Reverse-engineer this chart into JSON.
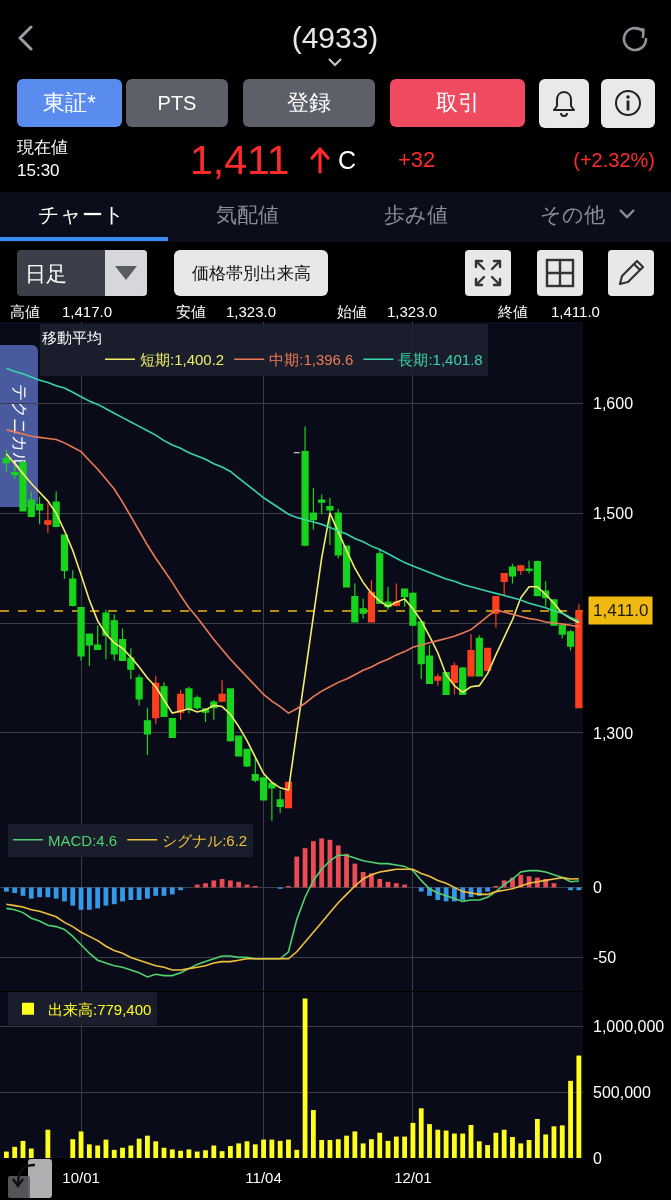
{
  "chart_data": [
    {
      "type": "other",
      "title": "(4933)",
      "annotations": [
        "東証*",
        "PTS",
        "登録",
        "取引",
        "現在値",
        "15:30",
        "1,411",
        "C",
        "+32",
        "(+2.32%)",
        "チャート",
        "気配値",
        "歩み値",
        "その他",
        "日足",
        "価格帯別出来高",
        "高値",
        "1,417.0",
        "安値",
        "1,323.0",
        "始値",
        "1,323.0",
        "終値",
        "1,411.0",
        "テクニカル"
      ]
    },
    {
      "type": "candlestick",
      "categories": [
        null,
        null,
        null,
        null,
        null,
        null,
        null,
        null,
        null,
        null,
        null,
        null,
        null,
        null,
        null,
        null,
        null,
        null,
        null,
        null,
        null,
        null,
        null,
        null,
        null,
        null,
        null,
        null,
        null,
        null,
        null,
        null,
        null,
        null,
        null,
        null,
        null,
        null,
        null,
        null,
        null,
        null,
        null,
        null,
        null,
        null,
        null,
        null,
        null,
        null,
        null,
        null,
        null,
        null,
        null,
        null,
        null,
        null,
        null,
        null,
        null,
        null,
        null,
        null,
        null,
        null,
        null,
        null,
        null,
        null
      ],
      "ohlc": [
        [
          1550,
          1558,
          1538,
          1546
        ],
        [
          1537,
          1543,
          1531,
          1535
        ],
        [
          1546,
          1548,
          1502,
          1502
        ],
        [
          1512,
          1520,
          1497,
          1497
        ],
        [
          1508,
          1515,
          1490,
          1503
        ],
        [
          1490,
          1509,
          1482,
          1493
        ],
        [
          1510,
          1520,
          1488,
          1488
        ],
        [
          1480,
          1480,
          1440,
          1448
        ],
        [
          1440,
          1448,
          1415,
          1416
        ],
        [
          1414,
          1414,
          1366,
          1370
        ],
        [
          1390,
          1390,
          1361,
          1380
        ],
        [
          1380,
          1398,
          1376,
          1376
        ],
        [
          1409,
          1412,
          1367,
          1389
        ],
        [
          1402,
          1408,
          1366,
          1372
        ],
        [
          1385,
          1395,
          1366,
          1366
        ],
        [
          1368,
          1377,
          1349,
          1358
        ],
        [
          1350,
          1353,
          1325,
          1331
        ],
        [
          1311,
          1323,
          1280,
          1299
        ],
        [
          1314,
          1352,
          1308,
          1345
        ],
        [
          1342,
          1346,
          1315,
          1315
        ],
        [
          1313,
          1313,
          1296,
          1296
        ],
        [
          1319,
          1339,
          1312,
          1335
        ],
        [
          1340,
          1342,
          1318,
          1322
        ],
        [
          1332,
          1334,
          1321,
          1323
        ],
        [
          1322,
          1322,
          1310,
          1319
        ],
        [
          1328,
          1330,
          1312,
          1323
        ],
        [
          1329,
          1348,
          1328,
          1335
        ],
        [
          1340,
          1340,
          1292,
          1293
        ],
        [
          1297,
          1297,
          1279,
          1279
        ],
        [
          1285,
          1285,
          1269,
          1270
        ],
        [
          1262,
          1277,
          1255,
          1257
        ],
        [
          1259,
          1259,
          1239,
          1239
        ],
        [
          1254,
          1255,
          1220,
          1250
        ],
        [
          1239,
          1248,
          1227,
          1233
        ],
        [
          1232,
          1255,
          1232,
          1255
        ],
        [
          1555,
          1555,
          1555,
          1555
        ],
        [
          1556,
          1579,
          1470,
          1471
        ],
        [
          1500,
          1523,
          1485,
          1494
        ],
        [
          1512,
          1517,
          1499,
          1510
        ],
        [
          1506,
          1514,
          1471,
          1503
        ],
        [
          1500,
          1504,
          1459,
          1462
        ],
        [
          1470,
          1470,
          1433,
          1433
        ],
        [
          1424,
          1436,
          1401,
          1401
        ],
        [
          1413,
          1422,
          1404,
          1409
        ],
        [
          1401,
          1439,
          1401,
          1428
        ],
        [
          1463,
          1467,
          1418,
          1418
        ],
        [
          1419,
          1433,
          1412,
          1415
        ],
        [
          1416,
          1436,
          1415,
          1419
        ],
        [
          1431,
          1431,
          1415,
          1424
        ],
        [
          1427,
          1428,
          1398,
          1398
        ],
        [
          1401,
          1401,
          1349,
          1363
        ],
        [
          1370,
          1380,
          1345,
          1345
        ],
        [
          1348,
          1354,
          1343,
          1351
        ],
        [
          1355,
          1355,
          1335,
          1335
        ],
        [
          1346,
          1364,
          1335,
          1361
        ],
        [
          1359,
          1360,
          1335,
          1335
        ],
        [
          1352,
          1390,
          1352,
          1375
        ],
        [
          1386,
          1389,
          1352,
          1352
        ],
        [
          1357,
          1377,
          1357,
          1377
        ],
        [
          1409,
          1424,
          1396,
          1424
        ],
        [
          1438,
          1445,
          1425,
          1445
        ],
        [
          1451,
          1454,
          1436,
          1443
        ],
        [
          1448,
          1453,
          1444,
          1452
        ],
        [
          1449,
          1457,
          1445,
          1448
        ],
        [
          1456,
          1457,
          1425,
          1425
        ],
        [
          1429,
          1438,
          1415,
          1423
        ],
        [
          1421,
          1421,
          1398,
          1398
        ],
        [
          1398,
          1398,
          1386,
          1390
        ],
        [
          1392,
          1394,
          1375,
          1379
        ],
        [
          1323,
          1417,
          1323,
          1411
        ]
      ],
      "colors": [
        "#17d41c",
        "#17d41c",
        "#17d41c",
        "#17d41c",
        "#17d41c",
        "#ff3e1e",
        "#17d41c",
        "#17d41c",
        "#17d41c",
        "#17d41c",
        "#17d41c",
        "#17d41c",
        "#17d41c",
        "#17d41c",
        "#17d41c",
        "#17d41c",
        "#17d41c",
        "#17d41c",
        "#ff3e1e",
        "#17d41c",
        "#17d41c",
        "#ff3e1e",
        "#17d41c",
        "#17d41c",
        "#17d41c",
        "#17d41c",
        "#ff3e1e",
        "#17d41c",
        "#17d41c",
        "#17d41c",
        "#17d41c",
        "#17d41c",
        "#17d41c",
        "#17d41c",
        "#ff3e1e",
        "#f2f2f2",
        "#17d41c",
        "#17d41c",
        "#17d41c",
        "#17d41c",
        "#17d41c",
        "#17d41c",
        "#17d41c",
        "#17d41c",
        "#ff3e1e",
        "#17d41c",
        "#17d41c",
        "#ff3e1e",
        "#17d41c",
        "#17d41c",
        "#17d41c",
        "#17d41c",
        "#ff3e1e",
        "#17d41c",
        "#ff3e1e",
        "#17d41c",
        "#ff3e1e",
        "#17d41c",
        "#ff3e1e",
        "#ff3e1e",
        "#ff3e1e",
        "#17d41c",
        "#ff3e1e",
        "#17d41c",
        "#17d41c",
        "#17d41c",
        "#17d41c",
        "#17d41c",
        "#17d41c",
        "#ff3e1e"
      ],
      "series": [
        {
          "type": "line",
          "name": "短期:1,400.2",
          "color": "#f3ee6a",
          "values": [
            1554,
            1545,
            1536,
            1527,
            1519,
            1511,
            1500,
            1484,
            1466,
            1444,
            1421,
            1402,
            1390,
            1382,
            1377,
            1369,
            1360,
            1350,
            1342,
            1330,
            1318,
            1320,
            1322,
            1319,
            1321,
            1325,
            1324,
            1317,
            1306,
            1293,
            1278,
            1263,
            1255,
            1250,
            1248,
            1301,
            1353,
            1406,
            1459,
            1500,
            1483,
            1466,
            1450,
            1437,
            1427,
            1420,
            1415,
            1419,
            1422,
            1413,
            1402,
            1388,
            1373,
            1353,
            1343,
            1337,
            1342,
            1343,
            1354,
            1371,
            1387,
            1403,
            1423,
            1433,
            1433,
            1426,
            1418,
            1409,
            1404,
            1400.2
          ]
        },
        {
          "type": "line",
          "name": "中期:1,396.6",
          "color": "#ec7a56",
          "values": [
            1576,
            1574,
            1572,
            1570,
            1569,
            1568,
            1567,
            1564,
            1560,
            1556,
            1548,
            1540,
            1531,
            1522,
            1510,
            1497,
            1484,
            1471,
            1459,
            1448,
            1437,
            1425,
            1414,
            1405,
            1395,
            1385,
            1376,
            1367,
            1359,
            1351,
            1343,
            1335,
            1329,
            1324,
            1318,
            1322,
            1327,
            1333,
            1338,
            1342,
            1346,
            1349,
            1353,
            1357,
            1360,
            1364,
            1367,
            1371,
            1374,
            1378,
            1380,
            1382,
            1384,
            1386,
            1388,
            1391,
            1394,
            1400,
            1406,
            1412,
            1410,
            1408,
            1406,
            1404,
            1403,
            1401,
            1400,
            1399,
            1398,
            1396.6
          ]
        },
        {
          "type": "line",
          "name": "長期:1,401.8",
          "color": "#38d4aa",
          "values": [
            1632,
            1629,
            1627,
            1624,
            1621,
            1619,
            1616,
            1614,
            1610,
            1606,
            1602,
            1599,
            1595,
            1591,
            1587,
            1583,
            1579,
            1575,
            1571,
            1566,
            1562,
            1559,
            1555,
            1552,
            1549,
            1545,
            1542,
            1538,
            1532,
            1526,
            1520,
            1514,
            1509,
            1504,
            1499,
            1496,
            1494,
            1492,
            1490,
            1487,
            1484,
            1481,
            1477,
            1474,
            1470,
            1467,
            1463,
            1459,
            1455,
            1452,
            1449,
            1446,
            1443,
            1440,
            1438,
            1435,
            1433,
            1431,
            1429,
            1427,
            1425,
            1423,
            1421,
            1418,
            1416,
            1414,
            1411,
            1409,
            1405,
            1401.8
          ]
        }
      ],
      "legend_title": "移動平均",
      "legend": "top left",
      "ylim": [
        1218,
        1674
      ],
      "yticks": [
        {
          "value": 1300,
          "label": "1,300"
        },
        {
          "value": 1400,
          "label": null
        },
        {
          "value": 1500,
          "label": "1,500"
        },
        {
          "value": 1600,
          "label": "1,600"
        }
      ],
      "ref_lines": [
        {
          "axis": "y",
          "value": 1411,
          "label": "1,411.0",
          "color": "#f0b90f",
          "line_style": "dashed"
        }
      ],
      "grid": true
    },
    {
      "type": "bar",
      "categories": [
        null,
        null,
        null,
        null,
        null,
        null,
        null,
        null,
        null,
        null,
        null,
        null,
        null,
        null,
        null,
        null,
        null,
        null,
        null,
        null,
        null,
        null,
        null,
        null,
        null,
        null,
        null,
        null,
        null,
        null,
        null,
        null,
        null,
        null,
        null,
        null,
        null,
        null,
        null,
        null,
        null,
        null,
        null,
        null,
        null,
        null,
        null,
        null,
        null,
        null,
        null,
        null,
        null,
        null,
        null,
        null,
        null,
        null,
        null,
        null,
        null,
        null,
        null,
        null,
        null,
        null,
        null,
        null,
        null,
        null
      ],
      "series": [
        {
          "values": [
            -3,
            -4,
            -6,
            -8,
            -7,
            -7,
            -8,
            -10,
            -13,
            -16,
            -16,
            -15,
            -13,
            -12,
            -10,
            -9,
            -9,
            -8,
            -6,
            -6,
            -5,
            -2,
            null,
            2,
            3,
            5,
            6,
            5,
            4,
            2,
            1,
            null,
            null,
            -1,
            1,
            22,
            28,
            33,
            35,
            34,
            30,
            24,
            17,
            11,
            10,
            6,
            4,
            3,
            2,
            null,
            -3,
            -6,
            -9,
            -10,
            -10,
            -9,
            -7,
            -6,
            -3,
            1,
            5,
            7,
            9,
            8,
            7,
            6,
            3,
            null,
            -2,
            -2
          ],
          "colors": [
            "#3399e6",
            "#3399e6",
            "#3399e6",
            "#3399e6",
            "#3399e6",
            "#3399e6",
            "#3399e6",
            "#3399e6",
            "#3399e6",
            "#3399e6",
            "#3399e6",
            "#3399e6",
            "#3399e6",
            "#3399e6",
            "#3399e6",
            "#3399e6",
            "#3399e6",
            "#3399e6",
            "#3399e6",
            "#3399e6",
            "#3399e6",
            "#3399e6",
            null,
            "#eb4b52",
            "#eb4b52",
            "#eb4b52",
            "#eb4b52",
            "#eb4b52",
            "#eb4b52",
            "#eb4b52",
            "#eb4b52",
            null,
            null,
            "#3399e6",
            "#eb4b52",
            "#eb4b52",
            "#eb4b52",
            "#eb4b52",
            "#eb4b52",
            "#eb4b52",
            "#eb4b52",
            "#eb4b52",
            "#eb4b52",
            "#eb4b52",
            "#eb4b52",
            "#eb4b52",
            "#eb4b52",
            "#eb4b52",
            "#eb4b52",
            null,
            "#3399e6",
            "#3399e6",
            "#3399e6",
            "#3399e6",
            "#3399e6",
            "#3399e6",
            "#3399e6",
            "#3399e6",
            "#3399e6",
            "#eb4b52",
            "#eb4b52",
            "#eb4b52",
            "#eb4b52",
            "#eb4b52",
            "#eb4b52",
            "#eb4b52",
            "#eb4b52",
            null,
            "#3399e6",
            "#3399e6"
          ]
        },
        {
          "type": "line",
          "name": "MACD:4.6",
          "color": "#4fd26f",
          "values": [
            -15,
            -16,
            -18,
            -22,
            -24,
            -27,
            -28,
            -30,
            -35,
            -41,
            -47,
            -52,
            -54,
            -56,
            -57,
            -59,
            -61,
            -64,
            -62,
            -63,
            -63,
            -61,
            -58,
            -55,
            -53,
            -51,
            -49,
            -49,
            -50,
            -50,
            -51,
            -51,
            -51,
            -51,
            -46,
            -23,
            -7,
            5,
            13,
            19,
            23,
            23,
            21,
            19,
            18,
            17,
            17,
            16,
            15,
            12,
            5,
            -1,
            -4,
            -6,
            -8,
            -10,
            -9,
            -9,
            -7,
            -3,
            2,
            6,
            11,
            12,
            12,
            11,
            9,
            7,
            4,
            4.6
          ]
        },
        {
          "type": "line",
          "name": "シグナル:6.2",
          "color": "#f0c23c",
          "values": [
            -12,
            -13,
            -14,
            -16,
            -17,
            -19,
            -21,
            -25,
            -28,
            -32,
            -35,
            -38,
            -42,
            -45,
            -47,
            -50,
            -52,
            -54,
            -56,
            -57,
            -59,
            -59,
            -58,
            -57,
            -56,
            -54,
            -53,
            -53,
            -52,
            -51,
            -51,
            -51,
            -51,
            -51,
            -51,
            -46,
            -39,
            -32,
            -25,
            -18,
            -11,
            -5,
            1,
            6,
            9,
            11,
            12,
            13,
            13,
            13,
            10,
            8,
            5,
            3,
            0,
            -3,
            -4,
            -5,
            -5,
            -3,
            -2,
            -1,
            1,
            3,
            4,
            5,
            6,
            7,
            6,
            6.2
          ]
        }
      ],
      "legend": "top left",
      "ylim": [
        -74,
        46
      ],
      "yticks": [
        {
          "value": -50,
          "label": "-50"
        },
        {
          "value": 0,
          "label": "0"
        }
      ],
      "grid": true
    },
    {
      "type": "bar",
      "categories": [
        null,
        null,
        null,
        null,
        null,
        null,
        null,
        null,
        null,
        "10/01",
        null,
        null,
        null,
        null,
        null,
        null,
        null,
        null,
        null,
        null,
        null,
        null,
        null,
        null,
        null,
        null,
        null,
        null,
        null,
        null,
        null,
        "11/04",
        null,
        null,
        null,
        null,
        null,
        null,
        null,
        null,
        null,
        null,
        null,
        null,
        null,
        null,
        null,
        null,
        null,
        "12/01",
        null,
        null,
        null,
        null,
        null,
        null,
        null,
        null,
        null,
        null,
        null,
        null,
        null,
        null,
        null,
        null,
        null,
        null,
        null,
        null
      ],
      "series": [
        {
          "name": "出来高:779,400",
          "color": "#ffff1e",
          "values": [
            49000,
            85000,
            130000,
            72000,
            null,
            215000,
            null,
            null,
            143000,
            202000,
            104000,
            95000,
            140000,
            62000,
            78000,
            95000,
            147000,
            170000,
            127000,
            78000,
            65000,
            55000,
            65000,
            49000,
            59000,
            95000,
            52000,
            91000,
            111000,
            127000,
            104000,
            140000,
            140000,
            130000,
            140000,
            62000,
            1213000,
            365000,
            137000,
            137000,
            143000,
            170000,
            202000,
            111000,
            143000,
            192000,
            130000,
            163000,
            163000,
            267000,
            378000,
            258000,
            215000,
            209000,
            186000,
            186000,
            251000,
            127000,
            98000,
            192000,
            215000,
            160000,
            111000,
            137000,
            297000,
            179000,
            241000,
            248000,
            587000,
            779400
          ]
        }
      ],
      "legend": "top left",
      "ylim": [
        0,
        1263000
      ],
      "yticks": [
        {
          "value": 0,
          "label": "0"
        },
        {
          "value": 500000,
          "label": "500,000"
        },
        {
          "value": 1000000,
          "label": "1,000,000"
        }
      ],
      "grid": true
    }
  ]
}
